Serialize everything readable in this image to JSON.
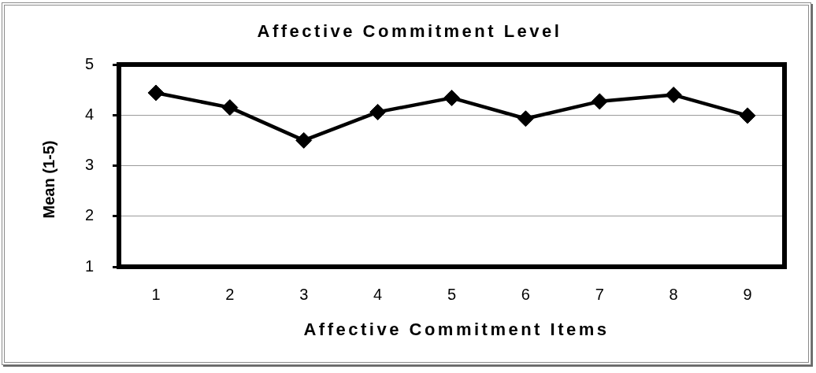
{
  "chart_data": {
    "type": "line",
    "title": "Affective Commitment Level",
    "xlabel": "Affective Commitment Items",
    "ylabel": "Mean (1-5)",
    "categories": [
      "1",
      "2",
      "3",
      "4",
      "5",
      "6",
      "7",
      "8",
      "9"
    ],
    "values": [
      4.44,
      4.15,
      3.5,
      4.06,
      4.34,
      3.93,
      4.27,
      4.4,
      3.99
    ],
    "color": "#000000",
    "ylim": [
      1,
      5
    ],
    "yticks": [
      1,
      2,
      3,
      4,
      5
    ],
    "grid": "y",
    "marker": "diamond",
    "line_style": "solid"
  }
}
